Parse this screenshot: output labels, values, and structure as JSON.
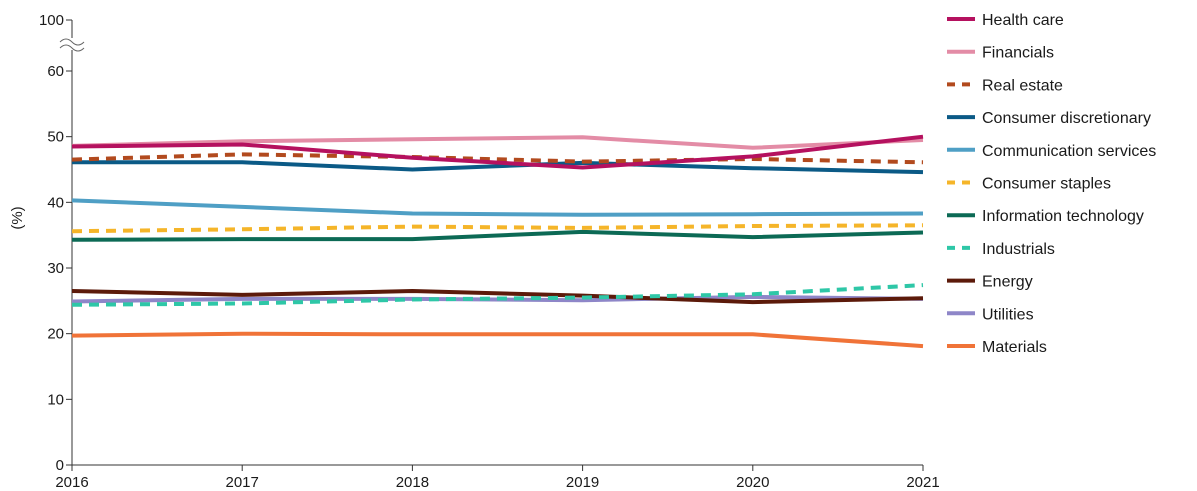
{
  "chart_data": {
    "type": "line",
    "title": "",
    "xlabel": "",
    "ylabel": "(%)",
    "x": [
      "2016",
      "2017",
      "2018",
      "2019",
      "2020",
      "2021"
    ],
    "ylim": [
      0,
      60
    ],
    "y_ticks": [
      "0",
      "10",
      "20",
      "30",
      "40",
      "50",
      "60"
    ],
    "y_break_top_label": "100",
    "grid": false,
    "legend_position": "right",
    "series": [
      {
        "name": "Health care",
        "color": "#b5115f",
        "dash": "solid",
        "values": [
          48.5,
          48.8,
          46.8,
          45.3,
          47.0,
          50.0
        ]
      },
      {
        "name": "Financials",
        "color": "#e38ca6",
        "dash": "solid",
        "values": [
          48.6,
          49.3,
          49.6,
          49.9,
          48.3,
          49.5
        ]
      },
      {
        "name": "Real estate",
        "color": "#b24a1e",
        "dash": "dashed",
        "values": [
          46.5,
          47.3,
          46.9,
          46.2,
          46.6,
          46.1
        ]
      },
      {
        "name": "Consumer discretionary",
        "color": "#0b5a86",
        "dash": "solid",
        "values": [
          46.1,
          46.1,
          45.0,
          46.0,
          45.2,
          44.6
        ]
      },
      {
        "name": "Communication services",
        "color": "#4f9fc5",
        "dash": "solid",
        "values": [
          40.3,
          39.3,
          38.3,
          38.1,
          38.2,
          38.3
        ]
      },
      {
        "name": "Consumer staples",
        "color": "#f5b529",
        "dash": "dashed",
        "values": [
          35.6,
          35.9,
          36.3,
          36.1,
          36.4,
          36.5
        ]
      },
      {
        "name": "Information technology",
        "color": "#0c6a55",
        "dash": "solid",
        "values": [
          34.3,
          34.4,
          34.4,
          35.5,
          34.7,
          35.4
        ]
      },
      {
        "name": "Industrials",
        "color": "#2ec7a7",
        "dash": "dashed",
        "values": [
          24.4,
          24.6,
          25.2,
          25.5,
          26.0,
          27.4
        ]
      },
      {
        "name": "Energy",
        "color": "#5c1a0a",
        "dash": "solid",
        "values": [
          26.5,
          25.9,
          26.5,
          25.8,
          24.8,
          25.4
        ]
      },
      {
        "name": "Utilities",
        "color": "#8e86c8",
        "dash": "solid",
        "values": [
          24.9,
          25.3,
          25.3,
          25.1,
          25.6,
          25.3
        ]
      },
      {
        "name": "Materials",
        "color": "#f07338",
        "dash": "solid",
        "values": [
          19.7,
          20.0,
          19.9,
          19.9,
          19.9,
          18.1
        ]
      }
    ]
  }
}
